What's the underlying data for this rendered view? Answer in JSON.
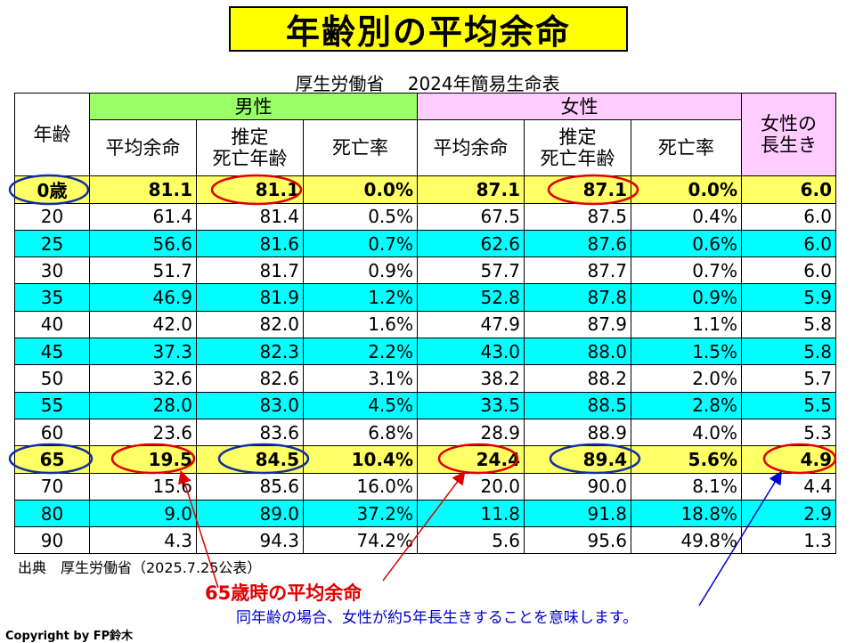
{
  "title": "年齢別の平均余命",
  "subtitle": "厚生労働省　 2024年簡易生命表",
  "table": {
    "group_male": "男性",
    "group_female": "女性",
    "col_age": "年齢",
    "col_avg_life_male": "平均余命",
    "col_est_death_male_1": "推定",
    "col_est_death_male_2": "死亡年齢",
    "col_mortality_male": "死亡率",
    "col_avg_life_female": "平均余命",
    "col_est_death_female_1": "推定",
    "col_est_death_female_2": "死亡年齢",
    "col_mortality_female": "死亡率",
    "col_longevity_1": "女性の",
    "col_longevity_2": "長生き",
    "rows": [
      [
        "0歳",
        "81.1",
        "81.1",
        "0.0%",
        "87.1",
        "87.1",
        "0.0%",
        "6.0"
      ],
      [
        "20",
        "61.4",
        "81.4",
        "0.5%",
        "67.5",
        "87.5",
        "0.4%",
        "6.0"
      ],
      [
        "25",
        "56.6",
        "81.6",
        "0.7%",
        "62.6",
        "87.6",
        "0.6%",
        "6.0"
      ],
      [
        "30",
        "51.7",
        "81.7",
        "0.9%",
        "57.7",
        "87.7",
        "0.7%",
        "6.0"
      ],
      [
        "35",
        "46.9",
        "81.9",
        "1.2%",
        "52.8",
        "87.8",
        "0.9%",
        "5.9"
      ],
      [
        "40",
        "42.0",
        "82.0",
        "1.6%",
        "47.9",
        "87.9",
        "1.1%",
        "5.8"
      ],
      [
        "45",
        "37.3",
        "82.3",
        "2.2%",
        "43.0",
        "88.0",
        "1.5%",
        "5.8"
      ],
      [
        "50",
        "32.6",
        "82.6",
        "3.1%",
        "38.2",
        "88.2",
        "2.0%",
        "5.7"
      ],
      [
        "55",
        "28.0",
        "83.0",
        "4.5%",
        "33.5",
        "88.5",
        "2.8%",
        "5.5"
      ],
      [
        "60",
        "23.6",
        "83.6",
        "6.8%",
        "28.9",
        "88.9",
        "4.0%",
        "5.3"
      ],
      [
        "65",
        "19.5",
        "84.5",
        "10.4%",
        "24.4",
        "89.4",
        "5.6%",
        "4.9"
      ],
      [
        "70",
        "15.6",
        "85.6",
        "16.0%",
        "20.0",
        "90.0",
        "8.1%",
        "4.4"
      ],
      [
        "80",
        "9.0",
        "89.0",
        "37.2%",
        "11.8",
        "91.8",
        "18.8%",
        "2.9"
      ],
      [
        "90",
        "4.3",
        "94.3",
        "74.2%",
        "5.6",
        "95.6",
        "49.8%",
        "1.3"
      ]
    ],
    "row_styles": [
      "hl",
      "w",
      "cy",
      "w",
      "cy",
      "w",
      "cy",
      "w",
      "cy",
      "w",
      "hl",
      "w",
      "cy",
      "w"
    ]
  },
  "source": "出典　厚生労働省（2025.7.25公表）",
  "annotation_red": "65歳時の平均余命",
  "annotation_blue": "同年齢の場合、女性が約5年長生きすることを意味します。",
  "copyright": "Copyright by FP鈴木",
  "colors": {
    "title_bg": "#ffff00",
    "male_header": "#99ff66",
    "female_header": "#ffccff",
    "highlight_row": "#ffff66",
    "alt_row": "#00ffff",
    "red_annotation": "#e00000",
    "blue_annotation": "#0000cc"
  }
}
